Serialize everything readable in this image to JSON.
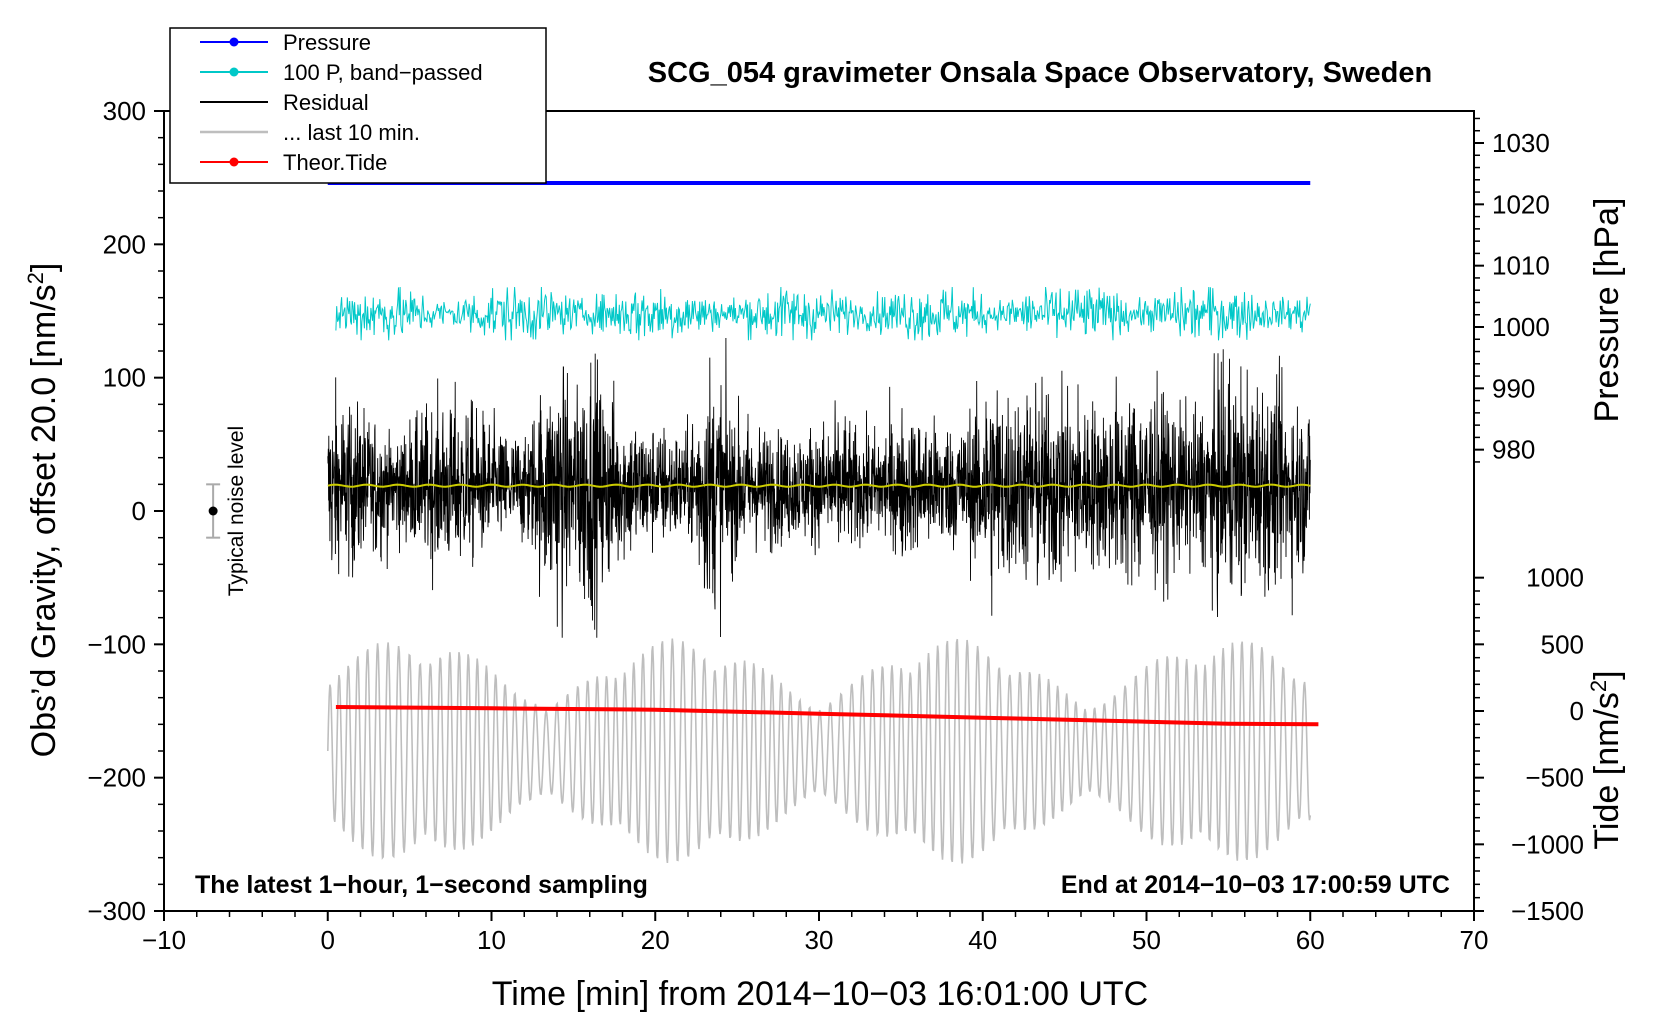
{
  "chart_data": {
    "type": "line",
    "title": "SCG_054 gravimeter Onsala Space Observatory, Sweden",
    "xlabel": "Time [min] from 2014−10−03 16:01:00 UTC",
    "ylabel": "Obs’d Gravity, offset 20.0 [nm/s²]",
    "ylabel_main": "Obs’d Gravity, offset 20.0 [nm/s",
    "ylabel_sup": "2",
    "ylabel_close": "]",
    "xlim": [
      -10,
      70
    ],
    "ylim": [
      -300,
      300
    ],
    "xticks": [
      -10,
      0,
      10,
      20,
      30,
      40,
      50,
      60,
      70
    ],
    "xtick_labels": [
      "−10",
      "0",
      "10",
      "20",
      "30",
      "40",
      "50",
      "60",
      "70"
    ],
    "yticks": [
      -300,
      -200,
      -100,
      0,
      100,
      200,
      300
    ],
    "ytick_labels": [
      "−300",
      "−200",
      "−100",
      "0",
      "100",
      "200",
      "300"
    ],
    "pressure_axis": {
      "label": "Pressure [hPa]",
      "ticks": [
        980,
        990,
        1000,
        1010,
        1020,
        1030
      ],
      "tick_labels": [
        "980",
        "990",
        "1000",
        "1010",
        "1020",
        "1030"
      ],
      "gravity_equiv_at_1000": 138,
      "gravity_per_hpa": 4.6
    },
    "tide_axis": {
      "label": "Tide [nm/s²]",
      "label_main": "Tide [nm/s",
      "label_sup": "2",
      "label_close": "]",
      "ticks": [
        -1500,
        -1000,
        -500,
        0,
        500,
        1000
      ],
      "tick_labels": [
        "−1500",
        "−1000",
        "−500",
        "0",
        "500",
        "1000"
      ],
      "gravity_equiv_at_0": -150,
      "gravity_per_unit": 0.1
    },
    "legend": {
      "position": "top-left",
      "entries": [
        {
          "label": "Pressure",
          "color": "#0000ff",
          "marker": "dot"
        },
        {
          "label": "100 P, band−passed",
          "color": "#00c8c8",
          "marker": "dot"
        },
        {
          "label": "Residual",
          "color": "#000000",
          "marker": "none"
        },
        {
          "label": "... last 10 min.",
          "color": "#bebebe",
          "marker": "none"
        },
        {
          "label": "Theor.Tide",
          "color": "#ff0000",
          "marker": "dot"
        }
      ]
    },
    "series": [
      {
        "name": "Pressure",
        "color": "#0000ff",
        "x_range": [
          0,
          60
        ],
        "y_gravity": 246,
        "pressure_hpa": 1023
      },
      {
        "name": "100 P, band−passed",
        "color": "#00c8c8",
        "x_range": [
          0.5,
          60
        ],
        "y_center": 148,
        "amplitude_max": 20
      },
      {
        "name": "Residual",
        "color": "#000000",
        "x_range": [
          0,
          60
        ],
        "y_center": 18,
        "burst_minutes": [
          2,
          8,
          14,
          16,
          23,
          26,
          29.5,
          31,
          35,
          39.5,
          42.5,
          45,
          48.5,
          53,
          55.5,
          58
        ],
        "envelope_x": [
          0,
          2,
          4,
          6,
          8,
          10,
          12,
          14,
          15,
          16,
          18,
          20,
          22,
          23.3,
          25,
          27,
          29,
          31,
          33,
          35,
          37,
          39,
          40.5,
          42,
          44,
          45.5,
          47,
          49,
          51,
          53,
          55,
          56,
          58,
          60
        ],
        "envelope_amp": [
          70,
          60,
          40,
          55,
          65,
          45,
          40,
          95,
          80,
          100,
          55,
          45,
          40,
          95,
          55,
          45,
          40,
          55,
          40,
          55,
          50,
          50,
          85,
          70,
          80,
          80,
          60,
          75,
          70,
          55,
          95,
          80,
          75,
          60
        ]
      },
      {
        "name": "Residual mean",
        "color": "#cccc00",
        "x_range": [
          0,
          60
        ],
        "y": 19
      },
      {
        "name": "... last 10 min.",
        "color": "#bebebe",
        "x_range": [
          0,
          60
        ],
        "y_center": -180,
        "amplitude_max": 85,
        "period_min": 0.6
      },
      {
        "name": "Theor.Tide",
        "color": "#ff0000",
        "x": [
          0.5,
          10,
          20,
          30,
          40,
          50,
          55,
          60.5
        ],
        "tide": [
          30,
          20,
          10,
          -20,
          -50,
          -80,
          -95,
          -100
        ]
      }
    ],
    "annotations": {
      "noise": {
        "label": "Typical noise level",
        "x": -7,
        "y": 0,
        "error": 20
      },
      "bottom_left": "The latest 1−hour, 1−second sampling",
      "bottom_right": "End at 2014−10−03 17:00:59 UTC"
    },
    "grid": false
  }
}
